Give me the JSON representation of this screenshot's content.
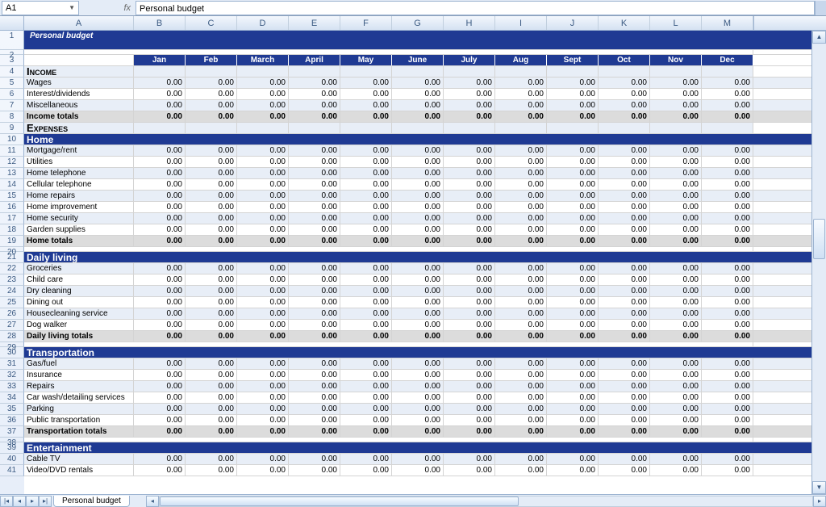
{
  "cell_ref": "A1",
  "formula_value": "Personal budget",
  "sheet_tab": "Personal budget",
  "title": "Personal budget",
  "columns": [
    "A",
    "B",
    "C",
    "D",
    "E",
    "F",
    "G",
    "H",
    "I",
    "J",
    "K",
    "L",
    "M"
  ],
  "months": [
    "Jan",
    "Feb",
    "March",
    "April",
    "May",
    "June",
    "July",
    "Aug",
    "Sept",
    "Oct",
    "Nov",
    "Dec"
  ],
  "zero": "0.00",
  "row_nums": [
    1,
    2,
    3,
    4,
    5,
    6,
    7,
    8,
    9,
    10,
    11,
    12,
    13,
    14,
    15,
    16,
    17,
    18,
    19,
    20,
    21,
    22,
    23,
    24,
    25,
    26,
    27,
    28,
    29,
    30,
    31,
    32,
    33,
    34,
    35,
    36,
    37,
    38,
    39,
    40,
    41
  ],
  "sections": {
    "income_label": "Income",
    "expenses_label": "Expenses",
    "income_rows": [
      "Wages",
      "Interest/dividends",
      "Miscellaneous"
    ],
    "income_total": "Income totals",
    "home": {
      "name": "Home",
      "rows": [
        "Mortgage/rent",
        "Utilities",
        "Home telephone",
        "Cellular telephone",
        "Home repairs",
        "Home improvement",
        "Home security",
        "Garden supplies"
      ],
      "total": "Home totals"
    },
    "daily": {
      "name": "Daily living",
      "rows": [
        "Groceries",
        "Child care",
        "Dry cleaning",
        "Dining out",
        "Housecleaning service",
        "Dog walker"
      ],
      "total": "Daily living totals"
    },
    "transport": {
      "name": "Transportation",
      "rows": [
        "Gas/fuel",
        "Insurance",
        "Repairs",
        "Car wash/detailing services",
        "Parking",
        "Public transportation"
      ],
      "total": "Transportation totals"
    },
    "entertainment": {
      "name": "Entertainment",
      "rows": [
        "Cable TV",
        "Video/DVD rentals"
      ]
    }
  },
  "colors": {
    "header_blue": "#1f3a93",
    "light_blue": "#e8eef7",
    "gray": "#dcdcdc",
    "excel_chrome": "#e4ecf7"
  }
}
